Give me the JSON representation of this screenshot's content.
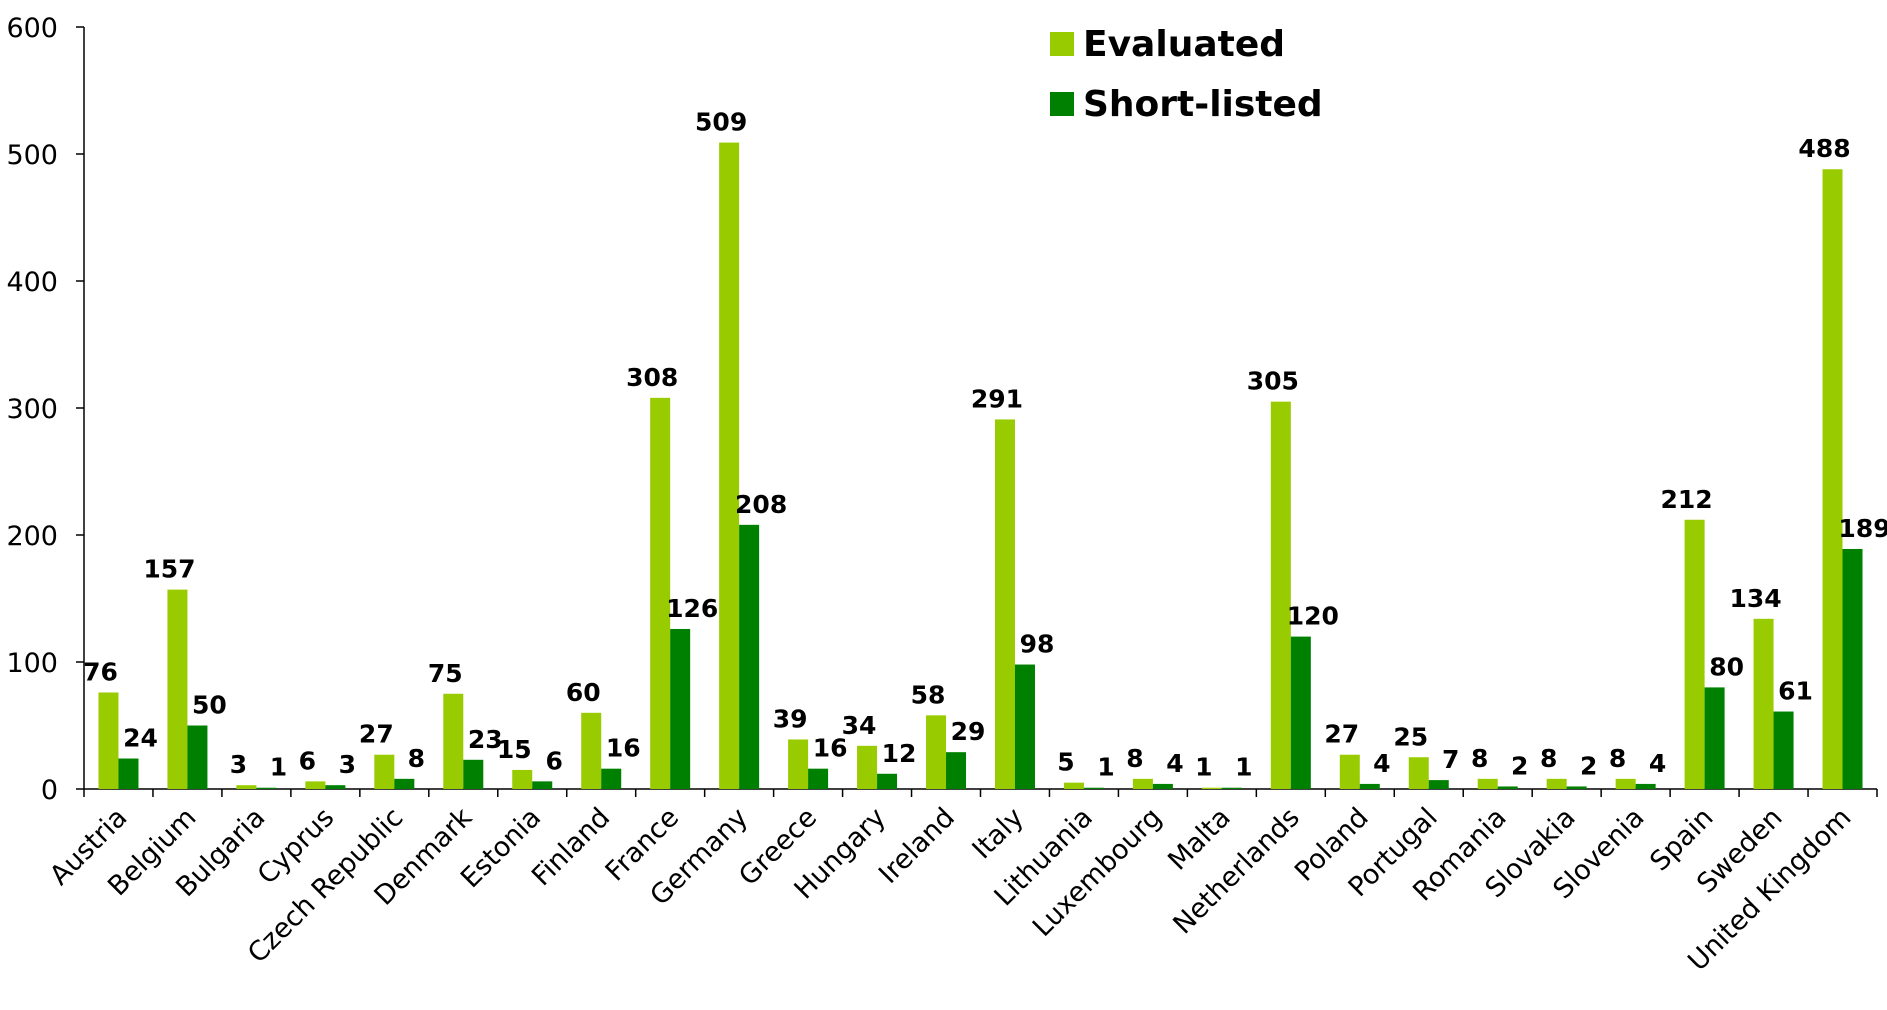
{
  "chart_data": {
    "type": "bar",
    "title": "",
    "xlabel": "",
    "ylabel": "",
    "ylim": [
      0,
      600
    ],
    "yticks": [
      0,
      100,
      200,
      300,
      400,
      500,
      600
    ],
    "grid": false,
    "legend_position": "top-center",
    "categories": [
      "Austria",
      "Belgium",
      "Bulgaria",
      "Cyprus",
      "Czech Republic",
      "Denmark",
      "Estonia",
      "Finland",
      "France",
      "Germany",
      "Greece",
      "Hungary",
      "Ireland",
      "Italy",
      "Lithuania",
      "Luxembourg",
      "Malta",
      "Netherlands",
      "Poland",
      "Portugal",
      "Romania",
      "Slovakia",
      "Slovenia",
      "Spain",
      "Sweden",
      "United Kingdom"
    ],
    "series": [
      {
        "name": "Evaluated",
        "color": "#99cc00",
        "values": [
          76,
          157,
          3,
          6,
          27,
          75,
          15,
          60,
          308,
          509,
          39,
          34,
          58,
          291,
          5,
          8,
          1,
          305,
          27,
          25,
          8,
          8,
          8,
          212,
          134,
          488
        ]
      },
      {
        "name": "Short-listed",
        "color": "#008000",
        "values": [
          24,
          50,
          1,
          3,
          8,
          23,
          6,
          16,
          126,
          208,
          16,
          12,
          29,
          98,
          1,
          4,
          1,
          120,
          4,
          7,
          2,
          2,
          4,
          80,
          61,
          189
        ]
      }
    ]
  }
}
